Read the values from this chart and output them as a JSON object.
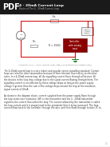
{
  "title": "4 - 20mA Current Loop",
  "subtitle": "Basics of The 4 - 20mA Current Loop",
  "pdf_label": "PDF",
  "page_bg": "#f5f5f0",
  "circuit_wire_color": "#cc0000",
  "controller_bg": "#8b0000",
  "controller_text": "#ffffff",
  "controller_label": "Controller\nwith analog\ninput",
  "ground_color": "#006600",
  "body_text_color": "#333333",
  "schematic_caption": "Schematic of a 4 - 20mA Current Loop (http://circuitsthatwork.blogspot.com/)",
  "body_lines": [
    "The 4-20mA current loop is a very robust and popular sensor signalling standard. Current",
    "loops are ideal for data transmission because of their inherent insensitivity to electrical",
    "noise. In a 4-20mA current loop, all the signalling current flows through all devices. All",
    "the devices in the loop drop voltage due to the signal current flowing through them. The",
    "signalling current is not affected by these voltage drops as long as the power supply",
    "voltage is greater than the sum of the voltage drops around the loop at the maximum",
    "signal current of 20mA.",
    "",
    "As shown in the diagram above, current supplied from the power supply flows through",
    "the loop series wire resistance, SW, to the transmitter and the 4 - 20mA transmitter",
    "regulates the current flow within the loop. The current allowed by the transmitter is called",
    "the loop current and it is proportional to the parameter that is being measured. The loop",
    "current flows back to the controller through the wire, and then flows through resistor, R, to"
  ]
}
